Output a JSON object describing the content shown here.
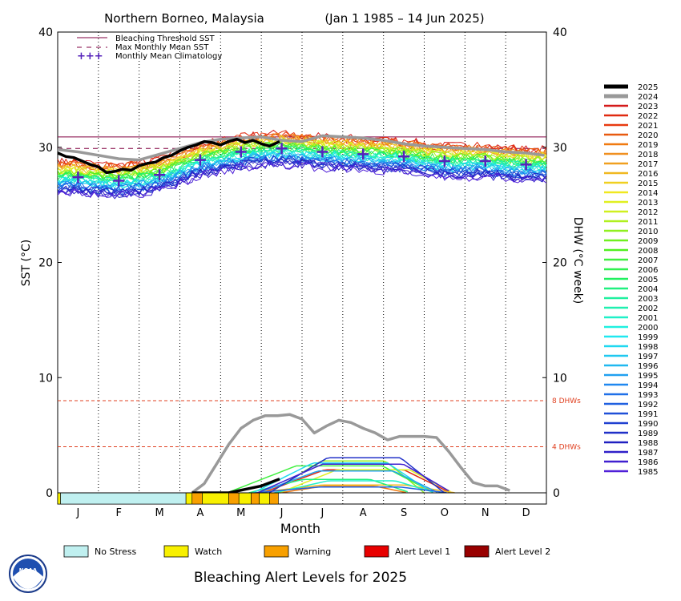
{
  "chart_data": {
    "type": "line",
    "title": "Northern Borneo, Malaysia",
    "subtitle": "(Jan 1 1985 – 14 Jun 2025)",
    "xlabel": "Month",
    "ylabel": "SST (°C)",
    "ylabel_right": "DHW (°C week)",
    "ylim": [
      0,
      40
    ],
    "yticks": [
      0,
      10,
      20,
      30,
      40
    ],
    "months": [
      "J",
      "F",
      "M",
      "A",
      "M",
      "J",
      "J",
      "A",
      "S",
      "O",
      "N",
      "D"
    ],
    "grid": "dotted vertical month lines",
    "legend_placement": "top-left inside plot; years on right outside",
    "thresholds": {
      "bleaching_threshold_sst": 30.9,
      "max_monthly_mean_sst": 29.9,
      "dhw_lines": [
        {
          "value": 8,
          "label": "8 DHWs"
        },
        {
          "value": 4,
          "label": "4 DHWs"
        }
      ]
    },
    "legend_items": [
      {
        "label": "Bleaching Threshold SST",
        "color": "#800040",
        "style": "solid"
      },
      {
        "label": "Max Monthly Mean SST",
        "color": "#800040",
        "style": "dashed"
      },
      {
        "label": "Monthly Mean Climatology",
        "color": "#5522bb",
        "style": "plus"
      }
    ],
    "climatology": {
      "x": [
        0.5,
        1.5,
        2.5,
        3.5,
        4.5,
        5.5,
        6.5,
        7.5,
        8.5,
        9.5,
        10.5,
        11.5
      ],
      "values": [
        27.4,
        27.1,
        27.6,
        28.9,
        29.6,
        29.9,
        29.6,
        29.4,
        29.2,
        28.8,
        28.8,
        28.5
      ]
    },
    "series_2025_sst": {
      "name": "2025",
      "x": [
        0,
        0.2,
        0.4,
        0.6,
        0.8,
        1.0,
        1.2,
        1.4,
        1.6,
        1.8,
        2.0,
        2.2,
        2.4,
        2.6,
        2.8,
        3.0,
        3.2,
        3.4,
        3.6,
        3.8,
        4.0,
        4.2,
        4.4,
        4.6,
        4.8,
        5.0,
        5.2,
        5.45
      ],
      "values": [
        29.5,
        29.2,
        29.1,
        28.8,
        28.5,
        28.3,
        27.8,
        27.9,
        28.1,
        28.0,
        28.4,
        28.6,
        28.7,
        29.1,
        29.3,
        29.7,
        30.0,
        30.2,
        30.5,
        30.4,
        30.2,
        30.5,
        30.7,
        30.4,
        30.6,
        30.3,
        30.1,
        30.5
      ]
    },
    "series_2024_sst": {
      "name": "2024",
      "x": [
        0,
        0.5,
        1.0,
        1.5,
        2.0,
        2.5,
        3.0,
        3.5,
        4.0,
        4.5,
        5.0,
        5.5,
        6.0,
        6.5,
        7.0,
        7.5,
        8.0,
        8.5,
        9.0,
        9.5,
        10.0,
        10.5,
        11.0,
        11.5,
        11.95
      ],
      "values": [
        29.8,
        29.6,
        29.3,
        29.0,
        28.9,
        29.4,
        29.9,
        30.4,
        30.7,
        30.8,
        30.9,
        30.6,
        30.5,
        31.0,
        30.9,
        30.8,
        30.6,
        30.3,
        30.1,
        30.0,
        29.9,
        29.8,
        29.6,
        29.5,
        29.3
      ]
    },
    "series_2024_dhw": {
      "name": "2024",
      "x": [
        3.3,
        3.6,
        3.9,
        4.2,
        4.5,
        4.8,
        5.1,
        5.4,
        5.7,
        6.0,
        6.3,
        6.6,
        6.9,
        7.2,
        7.5,
        7.8,
        8.1,
        8.4,
        8.7,
        9.0,
        9.3,
        9.6,
        9.9,
        10.2,
        10.5,
        10.8,
        11.1
      ],
      "values": [
        0.0,
        0.8,
        2.5,
        4.2,
        5.6,
        6.3,
        6.7,
        6.7,
        6.8,
        6.4,
        5.2,
        5.8,
        6.3,
        6.1,
        5.6,
        5.2,
        4.6,
        4.9,
        4.9,
        4.9,
        4.8,
        3.6,
        2.2,
        0.9,
        0.6,
        0.6,
        0.2
      ]
    },
    "year_legend": [
      "2025",
      "2024",
      "2023",
      "2022",
      "2021",
      "2020",
      "2019",
      "2018",
      "2017",
      "2016",
      "2015",
      "2014",
      "2013",
      "2012",
      "2011",
      "2010",
      "2009",
      "2008",
      "2007",
      "2006",
      "2005",
      "2004",
      "2003",
      "2002",
      "2001",
      "2000",
      "1999",
      "1998",
      "1997",
      "1996",
      "1995",
      "1994",
      "1993",
      "1992",
      "1991",
      "1990",
      "1989",
      "1988",
      "1987",
      "1986",
      "1985"
    ],
    "alert_levels": [
      {
        "label": "No Stress",
        "color": "#c0f0f0"
      },
      {
        "label": "Watch",
        "color": "#f8f000"
      },
      {
        "label": "Warning",
        "color": "#f8a000"
      },
      {
        "label": "Alert Level 1",
        "color": "#e80000"
      },
      {
        "label": "Alert Level 2",
        "color": "#980000"
      }
    ],
    "alert_strip": [
      {
        "from": 0.0,
        "to": 0.07,
        "level": "Watch"
      },
      {
        "from": 0.07,
        "to": 3.15,
        "level": "No Stress"
      },
      {
        "from": 3.15,
        "to": 3.3,
        "level": "Watch"
      },
      {
        "from": 3.3,
        "to": 3.55,
        "level": "Warning"
      },
      {
        "from": 3.55,
        "to": 4.2,
        "level": "Watch"
      },
      {
        "from": 4.2,
        "to": 4.45,
        "level": "Warning"
      },
      {
        "from": 4.45,
        "to": 4.75,
        "level": "Watch"
      },
      {
        "from": 4.75,
        "to": 4.95,
        "level": "Warning"
      },
      {
        "from": 4.95,
        "to": 5.2,
        "level": "Watch"
      },
      {
        "from": 5.2,
        "to": 5.42,
        "level": "Warning"
      }
    ]
  },
  "footer": {
    "title": "Bleaching Alert Levels for 2025",
    "logo_text": "NOAA"
  },
  "colors": {
    "threshold": "#800040",
    "dhw_line": "#e04020",
    "climatology": "#5522bb",
    "year2025": "#000000",
    "year2024": "#999999"
  }
}
